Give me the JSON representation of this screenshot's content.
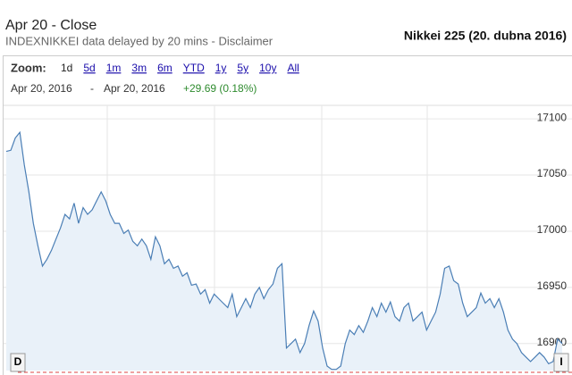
{
  "header": {
    "close_label": "Apr 20 - Close",
    "source": "INDEXNIKKEI data delayed by 20 mins - Disclaimer",
    "caption": "Nikkei 225 (20. dubna 2016)"
  },
  "controls": {
    "zoom_label": "Zoom:",
    "zoom_options": [
      "1d",
      "5d",
      "1m",
      "3m",
      "6m",
      "YTD",
      "1y",
      "5y",
      "10y",
      "All"
    ],
    "range_start": "Apr 20, 2016",
    "range_sep": "-",
    "range_end": "Apr 20, 2016",
    "change": "+29.69 (0.18%)",
    "button_left": "D",
    "button_right": "I"
  },
  "chart_data": {
    "type": "line",
    "color": "#4a7eb5",
    "fill": "#e9f1f9",
    "grid": true,
    "ylim": [
      16876,
      17112
    ],
    "yticks": [
      16900,
      16950,
      17000,
      17050,
      17100
    ],
    "values": [
      17071,
      17072,
      17083,
      17088,
      17059,
      17035,
      17007,
      16987,
      16969,
      16975,
      16983,
      16993,
      17003,
      17015,
      17011,
      17025,
      17007,
      17021,
      17015,
      17019,
      17027,
      17035,
      17027,
      17015,
      17007,
      17007,
      16998,
      17001,
      16991,
      16987,
      16993,
      16987,
      16975,
      16995,
      16987,
      16971,
      16975,
      16967,
      16969,
      16960,
      16963,
      16952,
      16953,
      16944,
      16948,
      16936,
      16944,
      16940,
      16936,
      16932,
      16944,
      16924,
      16932,
      16940,
      16932,
      16944,
      16950,
      16940,
      16948,
      16953,
      16967,
      16971,
      16896,
      16900,
      16904,
      16892,
      16900,
      16916,
      16929,
      16920,
      16896,
      16880,
      16877,
      16877,
      16880,
      16900,
      16912,
      16908,
      16916,
      16910,
      16920,
      16932,
      16924,
      16936,
      16928,
      16937,
      16924,
      16920,
      16932,
      16936,
      16920,
      16924,
      16928,
      16912,
      16920,
      16928,
      16944,
      16967,
      16969,
      16956,
      16953,
      16936,
      16924,
      16928,
      16932,
      16945,
      16936,
      16940,
      16932,
      16940,
      16928,
      16912,
      16904,
      16900,
      16892,
      16888,
      16884,
      16888,
      16892,
      16888,
      16882,
      16884,
      16904,
      16900
    ]
  }
}
